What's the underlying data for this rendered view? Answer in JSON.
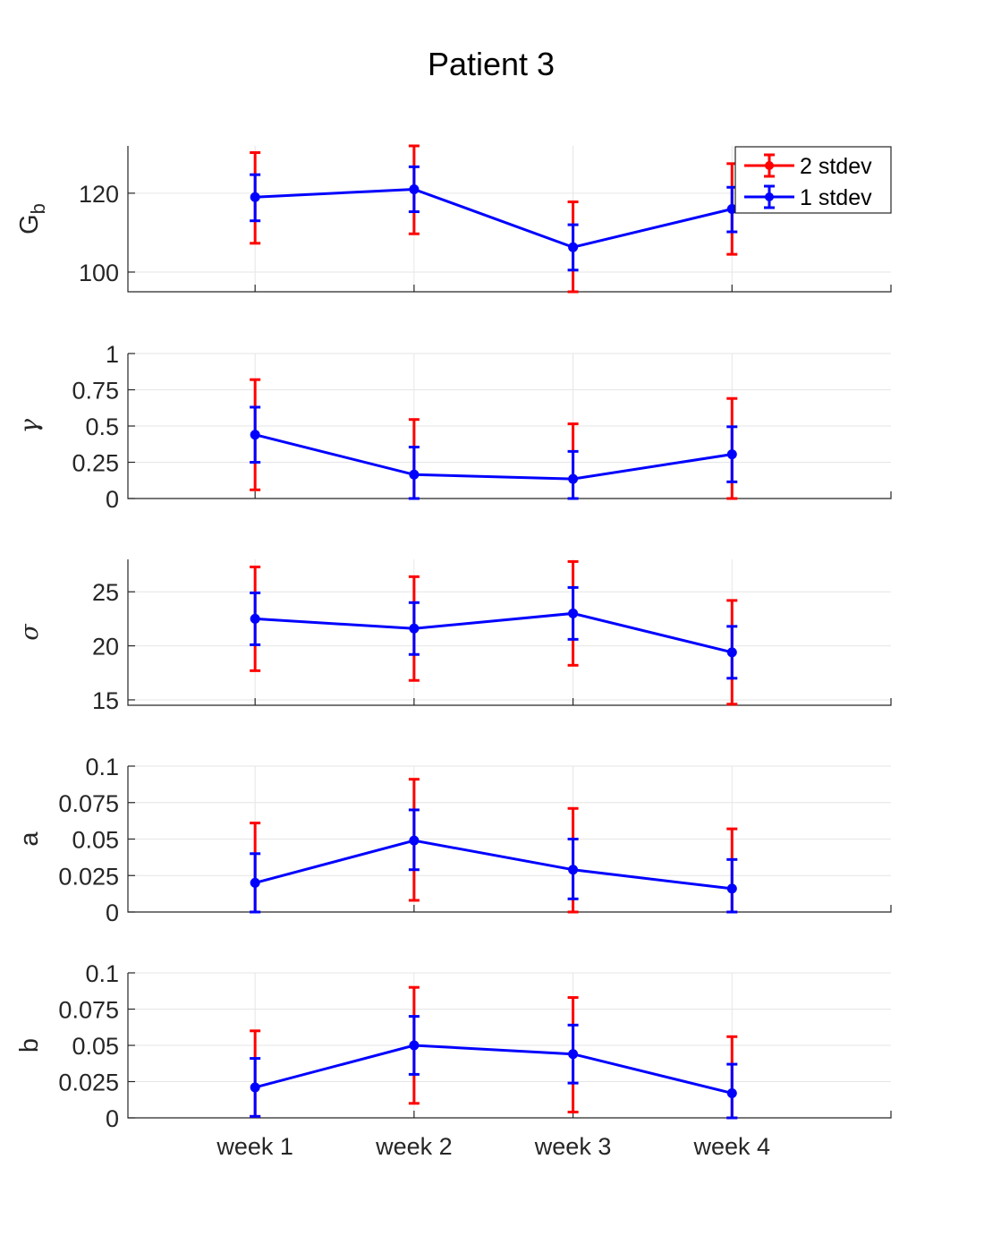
{
  "chart_data": {
    "title": "Patient 3",
    "type": "line",
    "categories": [
      "week 1",
      "week 2",
      "week 3",
      "week 4"
    ],
    "legend": {
      "position": "top-right",
      "entries": [
        {
          "label": "2 stdev",
          "color": "#ff0000"
        },
        {
          "label": "1 stdev",
          "color": "#0000ff"
        }
      ]
    },
    "panels": [
      {
        "ylabel": "G",
        "ylabel_sub": "b",
        "ylabel_style": "text",
        "ylim": [
          95,
          132
        ],
        "yticks": [
          100,
          120
        ],
        "ytick_labels": [
          "100",
          "120"
        ],
        "values": [
          119,
          121,
          106.3,
          116
        ],
        "err1_low": [
          113,
          115.3,
          100.5,
          110.2
        ],
        "err1_high": [
          124.7,
          126.7,
          112,
          121.5
        ],
        "err2_low": [
          107.3,
          109.7,
          95,
          104.5
        ],
        "err2_high": [
          130.3,
          132.5,
          117.8,
          127.5
        ]
      },
      {
        "ylabel": "γ",
        "ylabel_style": "greek",
        "ylim": [
          0,
          1
        ],
        "yticks": [
          0,
          0.25,
          0.5,
          0.75,
          1
        ],
        "ytick_labels": [
          "0",
          "0.25",
          "0.5",
          "0.75",
          "1"
        ],
        "values": [
          0.44,
          0.165,
          0.135,
          0.305
        ],
        "err1_low": [
          0.25,
          0,
          0,
          0.115
        ],
        "err1_high": [
          0.63,
          0.355,
          0.325,
          0.495
        ],
        "err2_low": [
          0.06,
          0,
          0,
          0
        ],
        "err2_high": [
          0.82,
          0.545,
          0.515,
          0.69
        ]
      },
      {
        "ylabel": "σ",
        "ylabel_style": "greek",
        "ylim": [
          14.5,
          28
        ],
        "yticks": [
          15,
          20,
          25
        ],
        "ytick_labels": [
          "15",
          "20",
          "25"
        ],
        "values": [
          22.5,
          21.6,
          23,
          19.4
        ],
        "err1_low": [
          20.1,
          19.2,
          20.6,
          17
        ],
        "err1_high": [
          24.9,
          24,
          25.4,
          21.8
        ],
        "err2_low": [
          17.7,
          16.8,
          18.2,
          14.6
        ],
        "err2_high": [
          27.3,
          26.4,
          27.8,
          24.2
        ]
      },
      {
        "ylabel": "a",
        "ylabel_style": "text",
        "ylim": [
          0,
          0.1
        ],
        "yticks": [
          0,
          0.025,
          0.05,
          0.075,
          0.1
        ],
        "ytick_labels": [
          "0",
          "0.025",
          "0.05",
          "0.075",
          "0.1"
        ],
        "values": [
          0.02,
          0.049,
          0.029,
          0.016
        ],
        "err1_low": [
          0,
          0.029,
          0.009,
          0
        ],
        "err1_high": [
          0.04,
          0.07,
          0.05,
          0.036
        ],
        "err2_low": [
          0,
          0.008,
          0,
          0
        ],
        "err2_high": [
          0.061,
          0.091,
          0.071,
          0.057
        ]
      },
      {
        "ylabel": "b",
        "ylabel_style": "text",
        "ylim": [
          0,
          0.1
        ],
        "yticks": [
          0,
          0.025,
          0.05,
          0.075,
          0.1
        ],
        "ytick_labels": [
          "0",
          "0.025",
          "0.05",
          "0.075",
          "0.1"
        ],
        "values": [
          0.021,
          0.05,
          0.044,
          0.017
        ],
        "err1_low": [
          0.001,
          0.03,
          0.024,
          0
        ],
        "err1_high": [
          0.041,
          0.07,
          0.064,
          0.037
        ],
        "err2_low": [
          0.001,
          0.01,
          0.004,
          0
        ],
        "err2_high": [
          0.06,
          0.09,
          0.083,
          0.056
        ]
      }
    ],
    "xlim": [
      0.2,
      5.0
    ],
    "grid": true
  }
}
